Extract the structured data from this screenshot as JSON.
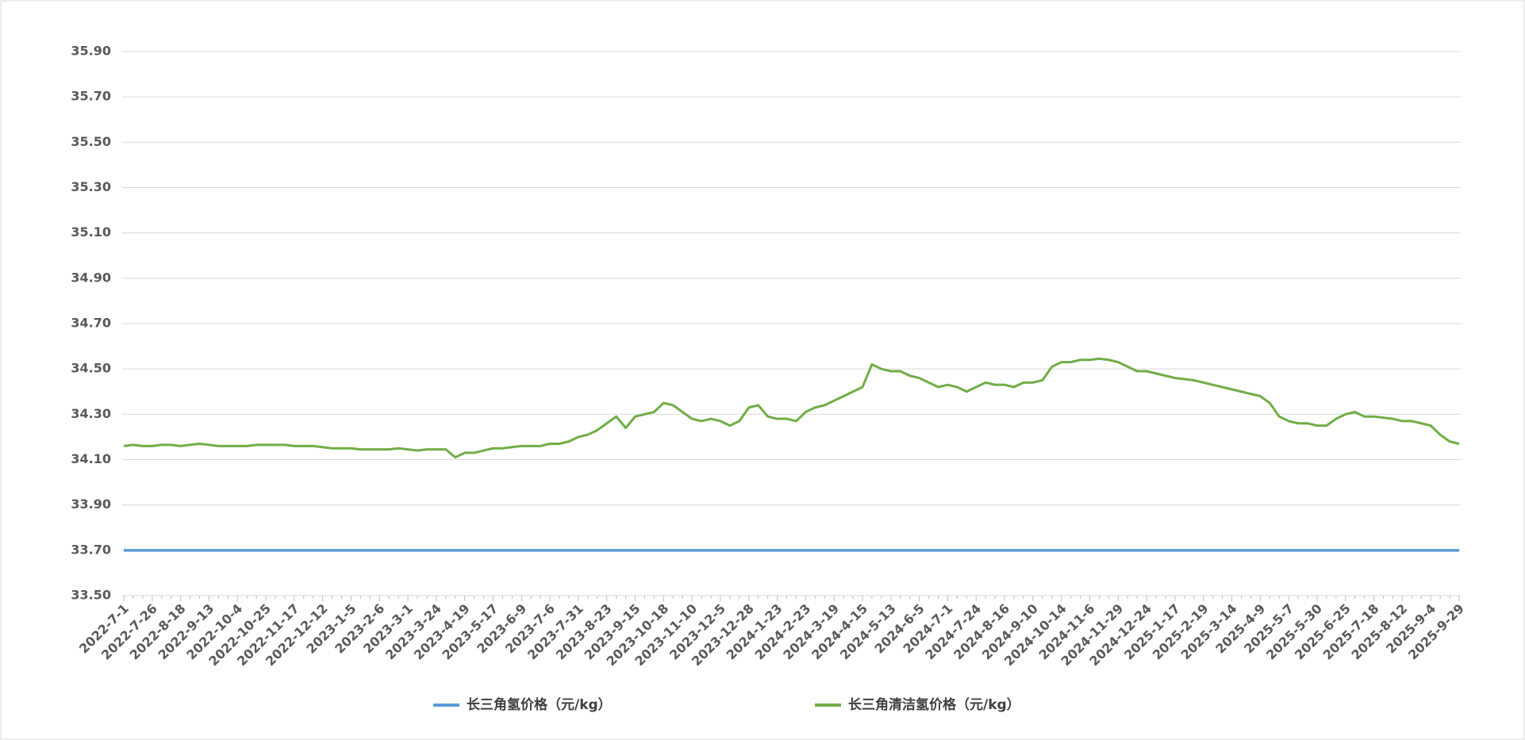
{
  "chart_data": {
    "type": "line",
    "categories": [
      "2022-7-1",
      null,
      null,
      "2022-7-26",
      null,
      null,
      "2022-8-18",
      null,
      null,
      "2022-9-13",
      null,
      null,
      "2022-10-4",
      null,
      null,
      "2022-10-25",
      null,
      null,
      "2022-11-17",
      null,
      null,
      "2022-12-12",
      null,
      null,
      "2023-1-5",
      null,
      null,
      "2023-2-6",
      null,
      null,
      "2023-3-1",
      null,
      null,
      "2023-3-24",
      null,
      null,
      "2023-4-19",
      null,
      null,
      "2023-5-17",
      null,
      null,
      "2023-6-9",
      null,
      null,
      "2023-7-6",
      null,
      null,
      "2023-7-31",
      null,
      null,
      "2023-8-23",
      null,
      null,
      "2023-9-15",
      null,
      null,
      "2023-10-18",
      null,
      null,
      "2023-11-10",
      null,
      null,
      "2023-12-5",
      null,
      null,
      "2023-12-28",
      null,
      null,
      "2024-1-23",
      null,
      null,
      "2024-2-23",
      null,
      null,
      "2024-3-19",
      null,
      null,
      "2024-4-15",
      null,
      null,
      "2024-5-13",
      null,
      null,
      "2024-6-5",
      null,
      null,
      "2024-7-1",
      null,
      null,
      "2024-7-24",
      null,
      null,
      "2024-8-16",
      null,
      null,
      "2024-9-10",
      null,
      null,
      "2024-10-14",
      null,
      null,
      "2024-11-6",
      null,
      null,
      "2024-11-29",
      null,
      null,
      "2024-12-24",
      null,
      null,
      "2025-1-17",
      null,
      null,
      "2025-2-19",
      null,
      null,
      "2025-3-14",
      null,
      null,
      "2025-4-9",
      null,
      null,
      "2025-5-7",
      null,
      null,
      "2025-5-30",
      null,
      null,
      "2025-6-25",
      null,
      null,
      "2025-7-18",
      null,
      null,
      "2025-8-12",
      null,
      null,
      "2025-9-4",
      null,
      null,
      "2025-9-29"
    ],
    "series": [
      {
        "name": "长三角氢价格（元/kg）",
        "color": "#5b9bd5",
        "values": [
          33.7,
          33.7,
          33.7,
          33.7,
          33.7,
          33.7,
          33.7,
          33.7,
          33.7,
          33.7,
          33.7,
          33.7,
          33.7,
          33.7,
          33.7,
          33.7,
          33.7,
          33.7,
          33.7,
          33.7,
          33.7,
          33.7,
          33.7,
          33.7,
          33.7,
          33.7,
          33.7,
          33.7,
          33.7,
          33.7,
          33.7,
          33.7,
          33.7,
          33.7,
          33.7,
          33.7,
          33.7,
          33.7,
          33.7,
          33.7,
          33.7,
          33.7,
          33.7,
          33.7,
          33.7,
          33.7,
          33.7,
          33.7,
          33.7,
          33.7,
          33.7,
          33.7,
          33.7,
          33.7,
          33.7,
          33.7,
          33.7,
          33.7,
          33.7,
          33.7,
          33.7,
          33.7,
          33.7,
          33.7,
          33.7,
          33.7,
          33.7,
          33.7,
          33.7,
          33.7,
          33.7,
          33.7,
          33.7,
          33.7,
          33.7,
          33.7,
          33.7,
          33.7,
          33.7,
          33.7,
          33.7,
          33.7,
          33.7,
          33.7,
          33.7,
          33.7,
          33.7,
          33.7,
          33.7,
          33.7,
          33.7,
          33.7,
          33.7,
          33.7,
          33.7,
          33.7,
          33.7,
          33.7,
          33.7,
          33.7,
          33.7,
          33.7,
          33.7,
          33.7,
          33.7,
          33.7,
          33.7,
          33.7,
          33.7,
          33.7,
          33.7,
          33.7,
          33.7,
          33.7,
          33.7,
          33.7,
          33.7,
          33.7,
          33.7,
          33.7,
          33.7,
          33.7,
          33.7,
          33.7,
          33.7,
          33.7,
          33.7,
          33.7,
          33.7,
          33.7,
          33.7,
          33.7,
          33.7,
          33.7,
          33.7,
          33.7,
          33.7,
          33.7,
          33.7,
          33.7,
          33.7,
          33.7
        ]
      },
      {
        "name": "长三角清洁氢价格（元/kg）",
        "color": "#70ad47",
        "values": [
          34.16,
          34.165,
          34.16,
          34.16,
          34.165,
          34.165,
          34.16,
          34.165,
          34.17,
          34.165,
          34.16,
          34.16,
          34.16,
          34.16,
          34.165,
          34.165,
          34.165,
          34.165,
          34.16,
          34.16,
          34.16,
          34.155,
          34.15,
          34.15,
          34.15,
          34.145,
          34.145,
          34.145,
          34.145,
          34.15,
          34.145,
          34.14,
          34.145,
          34.145,
          34.145,
          34.11,
          34.13,
          34.13,
          34.14,
          34.15,
          34.15,
          34.155,
          34.16,
          34.16,
          34.16,
          34.17,
          34.17,
          34.18,
          34.2,
          34.21,
          34.23,
          34.26,
          34.29,
          34.24,
          34.29,
          34.3,
          34.31,
          34.35,
          34.34,
          34.31,
          34.28,
          34.27,
          34.28,
          34.27,
          34.25,
          34.27,
          34.33,
          34.34,
          34.29,
          34.28,
          34.28,
          34.27,
          34.31,
          34.33,
          34.34,
          34.36,
          34.38,
          34.4,
          34.42,
          34.52,
          34.5,
          34.49,
          34.49,
          34.47,
          34.46,
          34.44,
          34.42,
          34.43,
          34.42,
          34.4,
          34.42,
          34.44,
          34.43,
          34.43,
          34.42,
          34.44,
          34.44,
          34.45,
          34.51,
          34.53,
          34.53,
          34.54,
          34.54,
          34.545,
          34.54,
          34.53,
          34.51,
          34.49,
          34.49,
          34.48,
          34.47,
          34.46,
          34.455,
          34.45,
          34.44,
          34.43,
          34.42,
          34.41,
          34.4,
          34.39,
          34.38,
          34.35,
          34.29,
          34.27,
          34.26,
          34.26,
          34.25,
          34.25,
          34.28,
          34.3,
          34.31,
          34.29,
          34.29,
          34.285,
          34.28,
          34.27,
          34.27,
          34.26,
          34.25,
          34.21,
          34.18,
          34.17
        ]
      }
    ],
    "ylim": [
      33.5,
      35.9
    ],
    "yticks": [
      {
        "value": 33.5,
        "label": "33.50"
      },
      {
        "value": 33.7,
        "label": "33.70"
      },
      {
        "value": 33.9,
        "label": "33.90"
      },
      {
        "value": 34.1,
        "label": "34.10"
      },
      {
        "value": 34.3,
        "label": "34.30"
      },
      {
        "value": 34.5,
        "label": "34.50"
      },
      {
        "value": 34.7,
        "label": "34.70"
      },
      {
        "value": 34.9,
        "label": "34.90"
      },
      {
        "value": 35.1,
        "label": "35.10"
      },
      {
        "value": 35.3,
        "label": "35.30"
      },
      {
        "value": 35.5,
        "label": "35.50"
      },
      {
        "value": 35.7,
        "label": "35.70"
      },
      {
        "value": 35.9,
        "label": "35.90"
      }
    ],
    "grid": true,
    "legend": "bottom"
  }
}
